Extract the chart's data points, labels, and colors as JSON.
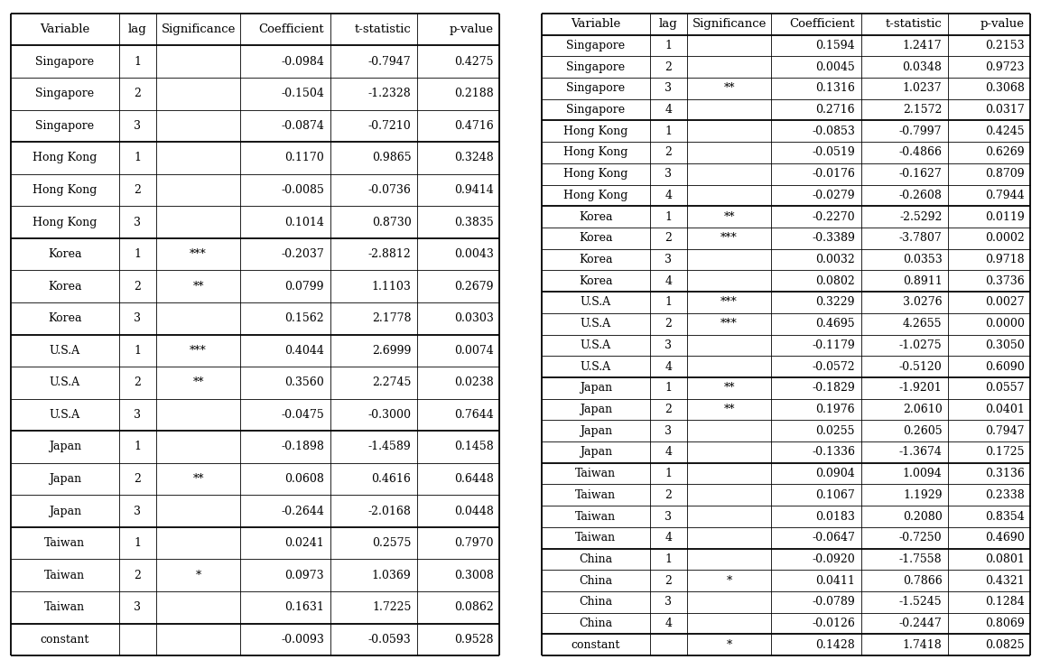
{
  "left_table": {
    "headers": [
      "Variable",
      "lag",
      "Significance",
      "Coefficient",
      "t-statistic",
      "p-value"
    ],
    "groups": [
      {
        "rows": [
          [
            "Singapore",
            "1",
            "",
            "-0.0984",
            "-0.7947",
            "0.4275"
          ],
          [
            "Singapore",
            "2",
            "",
            "-0.1504",
            "-1.2328",
            "0.2188"
          ],
          [
            "Singapore",
            "3",
            "",
            "-0.0874",
            "-0.7210",
            "0.4716"
          ]
        ]
      },
      {
        "rows": [
          [
            "Hong Kong",
            "1",
            "",
            "0.1170",
            "0.9865",
            "0.3248"
          ],
          [
            "Hong Kong",
            "2",
            "",
            "-0.0085",
            "-0.0736",
            "0.9414"
          ],
          [
            "Hong Kong",
            "3",
            "",
            "0.1014",
            "0.8730",
            "0.3835"
          ]
        ]
      },
      {
        "rows": [
          [
            "Korea",
            "1",
            "***",
            "-0.2037",
            "-2.8812",
            "0.0043"
          ],
          [
            "Korea",
            "2",
            "**",
            "0.0799",
            "1.1103",
            "0.2679"
          ],
          [
            "Korea",
            "3",
            "",
            "0.1562",
            "2.1778",
            "0.0303"
          ]
        ]
      },
      {
        "rows": [
          [
            "U.S.A",
            "1",
            "***",
            "0.4044",
            "2.6999",
            "0.0074"
          ],
          [
            "U.S.A",
            "2",
            "**",
            "0.3560",
            "2.2745",
            "0.0238"
          ],
          [
            "U.S.A",
            "3",
            "",
            "-0.0475",
            "-0.3000",
            "0.7644"
          ]
        ]
      },
      {
        "rows": [
          [
            "Japan",
            "1",
            "",
            "-0.1898",
            "-1.4589",
            "0.1458"
          ],
          [
            "Japan",
            "2",
            "**",
            "0.0608",
            "0.4616",
            "0.6448"
          ],
          [
            "Japan",
            "3",
            "",
            "-0.2644",
            "-2.0168",
            "0.0448"
          ]
        ]
      },
      {
        "rows": [
          [
            "Taiwan",
            "1",
            "",
            "0.0241",
            "0.2575",
            "0.7970"
          ],
          [
            "Taiwan",
            "2",
            "*",
            "0.0973",
            "1.0369",
            "0.3008"
          ],
          [
            "Taiwan",
            "3",
            "",
            "0.1631",
            "1.7225",
            "0.0862"
          ]
        ]
      },
      {
        "rows": [
          [
            "constant",
            "",
            "",
            "-0.0093",
            "-0.0593",
            "0.9528"
          ]
        ]
      }
    ]
  },
  "right_table": {
    "headers": [
      "Variable",
      "lag",
      "Significance",
      "Coefficient",
      "t-statistic",
      "p-value"
    ],
    "groups": [
      {
        "rows": [
          [
            "Singapore",
            "1",
            "",
            "0.1594",
            "1.2417",
            "0.2153"
          ],
          [
            "Singapore",
            "2",
            "",
            "0.0045",
            "0.0348",
            "0.9723"
          ],
          [
            "Singapore",
            "3",
            "**",
            "0.1316",
            "1.0237",
            "0.3068"
          ],
          [
            "Singapore",
            "4",
            "",
            "0.2716",
            "2.1572",
            "0.0317"
          ]
        ]
      },
      {
        "rows": [
          [
            "Hong Kong",
            "1",
            "",
            "-0.0853",
            "-0.7997",
            "0.4245"
          ],
          [
            "Hong Kong",
            "2",
            "",
            "-0.0519",
            "-0.4866",
            "0.6269"
          ],
          [
            "Hong Kong",
            "3",
            "",
            "-0.0176",
            "-0.1627",
            "0.8709"
          ],
          [
            "Hong Kong",
            "4",
            "",
            "-0.0279",
            "-0.2608",
            "0.7944"
          ]
        ]
      },
      {
        "rows": [
          [
            "Korea",
            "1",
            "**",
            "-0.2270",
            "-2.5292",
            "0.0119"
          ],
          [
            "Korea",
            "2",
            "***",
            "-0.3389",
            "-3.7807",
            "0.0002"
          ],
          [
            "Korea",
            "3",
            "",
            "0.0032",
            "0.0353",
            "0.9718"
          ],
          [
            "Korea",
            "4",
            "",
            "0.0802",
            "0.8911",
            "0.3736"
          ]
        ]
      },
      {
        "rows": [
          [
            "U.S.A",
            "1",
            "***",
            "0.3229",
            "3.0276",
            "0.0027"
          ],
          [
            "U.S.A",
            "2",
            "***",
            "0.4695",
            "4.2655",
            "0.0000"
          ],
          [
            "U.S.A",
            "3",
            "",
            "-0.1179",
            "-1.0275",
            "0.3050"
          ],
          [
            "U.S.A",
            "4",
            "",
            "-0.0572",
            "-0.5120",
            "0.6090"
          ]
        ]
      },
      {
        "rows": [
          [
            "Japan",
            "1",
            "**",
            "-0.1829",
            "-1.9201",
            "0.0557"
          ],
          [
            "Japan",
            "2",
            "**",
            "0.1976",
            "2.0610",
            "0.0401"
          ],
          [
            "Japan",
            "3",
            "",
            "0.0255",
            "0.2605",
            "0.7947"
          ],
          [
            "Japan",
            "4",
            "",
            "-0.1336",
            "-1.3674",
            "0.1725"
          ]
        ]
      },
      {
        "rows": [
          [
            "Taiwan",
            "1",
            "",
            "0.0904",
            "1.0094",
            "0.3136"
          ],
          [
            "Taiwan",
            "2",
            "",
            "0.1067",
            "1.1929",
            "0.2338"
          ],
          [
            "Taiwan",
            "3",
            "",
            "0.0183",
            "0.2080",
            "0.8354"
          ],
          [
            "Taiwan",
            "4",
            "",
            "-0.0647",
            "-0.7250",
            "0.4690"
          ]
        ]
      },
      {
        "rows": [
          [
            "China",
            "1",
            "",
            "-0.0920",
            "-1.7558",
            "0.0801"
          ],
          [
            "China",
            "2",
            "*",
            "0.0411",
            "0.7866",
            "0.4321"
          ],
          [
            "China",
            "3",
            "",
            "-0.0789",
            "-1.5245",
            "0.1284"
          ],
          [
            "China",
            "4",
            "",
            "-0.0126",
            "-0.2447",
            "0.8069"
          ]
        ]
      },
      {
        "rows": [
          [
            "constant",
            "",
            "*",
            "0.1428",
            "1.7418",
            "0.0825"
          ]
        ]
      }
    ]
  },
  "font_size": 9.0,
  "header_font_size": 9.5
}
